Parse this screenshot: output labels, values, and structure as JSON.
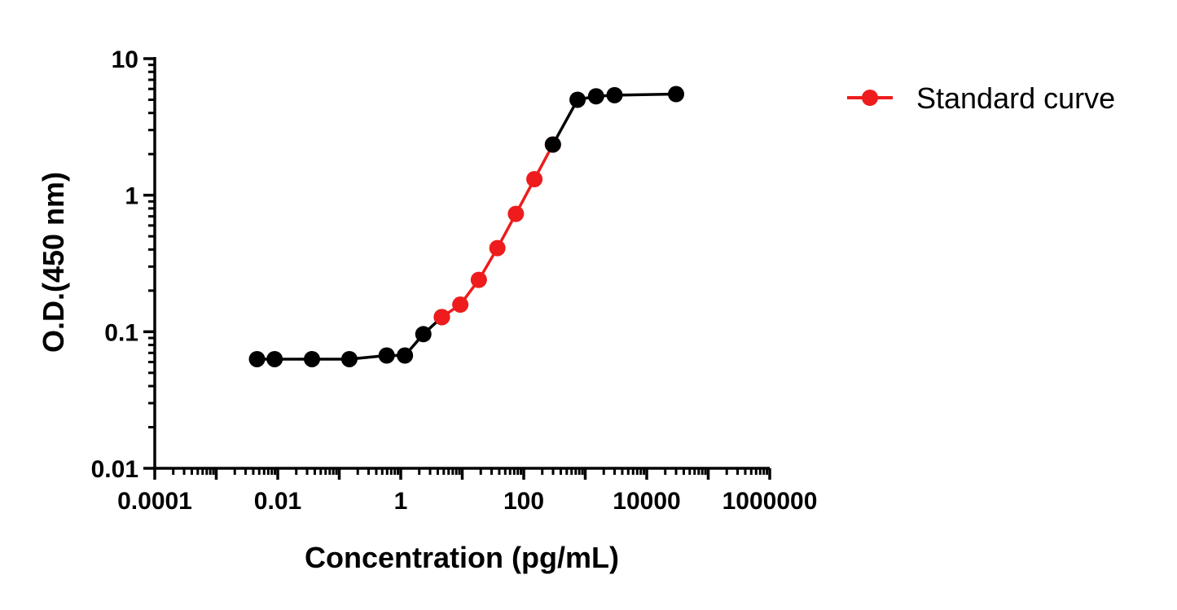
{
  "chart_data": {
    "type": "scatter",
    "title": "",
    "xlabel": "Concentration (pg/mL)",
    "ylabel": "O.D.(450 nm)",
    "x_scale": "log",
    "y_scale": "log",
    "xlim": [
      0.0001,
      1000000
    ],
    "ylim": [
      0.01,
      10
    ],
    "x_ticks": [
      {
        "value": 0.0001,
        "label": "0.0001"
      },
      {
        "value": 0.01,
        "label": "0.01"
      },
      {
        "value": 1,
        "label": "1"
      },
      {
        "value": 100,
        "label": "100"
      },
      {
        "value": 10000,
        "label": "10000"
      },
      {
        "value": 1000000,
        "label": "1000000"
      }
    ],
    "y_ticks": [
      {
        "value": 0.01,
        "label": "0.01"
      },
      {
        "value": 0.1,
        "label": "0.1"
      },
      {
        "value": 1,
        "label": "1"
      },
      {
        "value": 10,
        "label": "10"
      }
    ],
    "grid": false,
    "legend_position": "top-right",
    "colors": {
      "default": "#000000",
      "standard_curve": "#ee1c1c"
    },
    "series": [
      {
        "name": "",
        "color": "#000000",
        "points": [
          {
            "x": 0.0046,
            "y": 0.063
          },
          {
            "x": 0.0089,
            "y": 0.063
          },
          {
            "x": 0.036,
            "y": 0.063
          },
          {
            "x": 0.146,
            "y": 0.063
          },
          {
            "x": 0.59,
            "y": 0.067
          },
          {
            "x": 1.17,
            "y": 0.067
          },
          {
            "x": 2.33,
            "y": 0.096
          },
          {
            "x": 4.66,
            "y": 0.128
          }
        ]
      },
      {
        "name": "Standard curve",
        "color": "#ee1c1c",
        "points": [
          {
            "x": 4.66,
            "y": 0.128
          },
          {
            "x": 9.3,
            "y": 0.158
          },
          {
            "x": 18.6,
            "y": 0.24
          },
          {
            "x": 37.3,
            "y": 0.41
          },
          {
            "x": 74.5,
            "y": 0.73
          },
          {
            "x": 149,
            "y": 1.31
          },
          {
            "x": 298,
            "y": 2.35
          }
        ]
      },
      {
        "name": "",
        "color": "#000000",
        "points": [
          {
            "x": 298,
            "y": 2.35
          },
          {
            "x": 750,
            "y": 5.0
          },
          {
            "x": 1500,
            "y": 5.3
          },
          {
            "x": 3000,
            "y": 5.4
          },
          {
            "x": 30000,
            "y": 5.5
          }
        ]
      }
    ],
    "legend": [
      {
        "label": "Standard curve",
        "color": "#ee1c1c",
        "marker": "circle"
      }
    ]
  }
}
